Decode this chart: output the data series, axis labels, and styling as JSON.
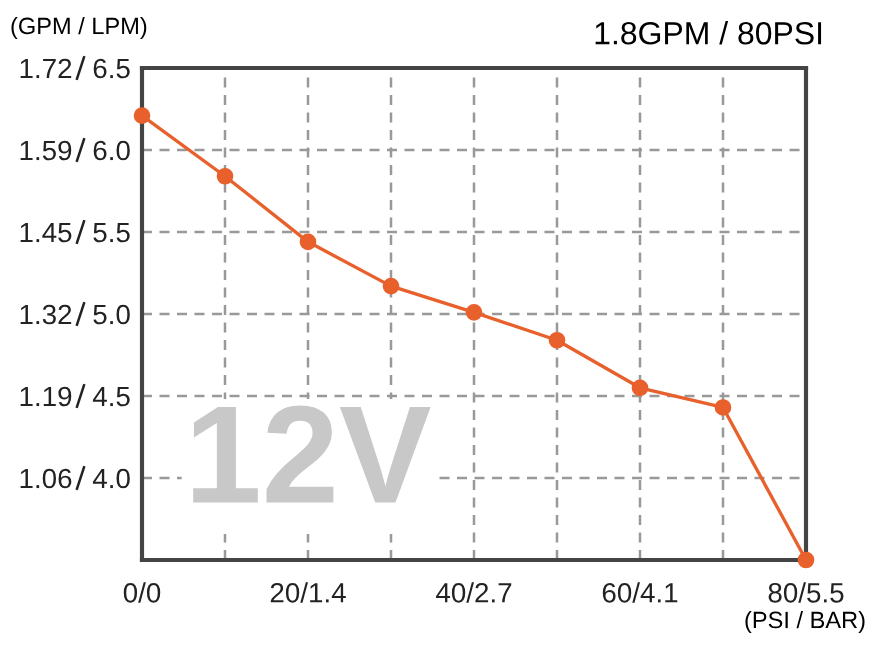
{
  "chart_data": {
    "type": "line",
    "title": "1.8GPM / 80PSI",
    "ylabel": "(GPM / LPM)",
    "xlabel": "(PSI / BAR)",
    "annotations": [
      "12V"
    ],
    "categories": [
      "0/0",
      null,
      "20/1.4",
      null,
      "40/2.7",
      null,
      "60/4.1",
      null,
      "80/5.5"
    ],
    "series": [
      {
        "color": "#e8602c",
        "values": [
          6.21,
          5.84,
          5.44,
          5.17,
          5.01,
          4.84,
          4.55,
          4.43,
          3.5
        ]
      }
    ],
    "ylim": [
      3.5,
      6.5
    ],
    "yticks": [
      {
        "value": 4.0,
        "label": "4.0"
      },
      4.5,
      {
        "value": 5.0,
        "label": "5.0"
      },
      5.5,
      {
        "value": 6.0,
        "label": "6.0"
      },
      6.5
    ],
    "y2lim": [
      0.925,
      1.717
    ],
    "y2ticks": [
      {
        "value": 1.057,
        "label": "1.06"
      },
      {
        "value": 1.189,
        "label": "1.19"
      },
      {
        "value": 1.321,
        "label": "1.32"
      },
      {
        "value": 1.453,
        "label": "1.45"
      },
      {
        "value": 1.585,
        "label": "1.59"
      },
      {
        "value": 1.717,
        "label": "1.72"
      }
    ],
    "grid": true,
    "marker": "circle",
    "line_style": "solid",
    "legend": false
  }
}
